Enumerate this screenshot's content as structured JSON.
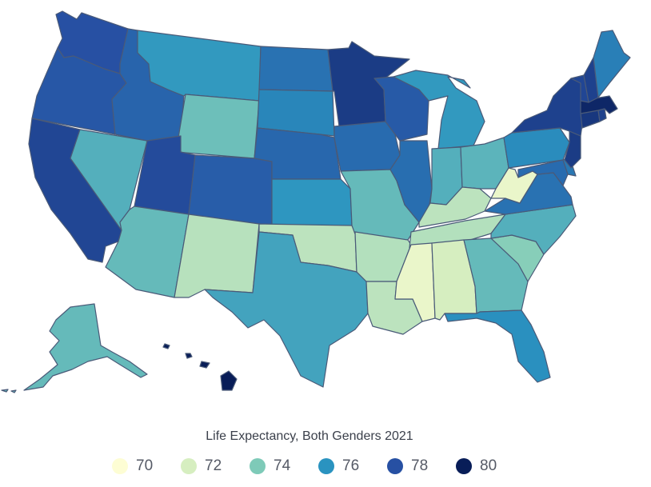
{
  "chart_data": {
    "type": "choropleth",
    "title": "Life Expectancy, Both Genders 2021",
    "legend": {
      "placement": "bottom-center",
      "items": [
        {
          "label": "70",
          "value": 70,
          "color": "#fdfdd4"
        },
        {
          "label": "72",
          "value": 72,
          "color": "#d6eec0"
        },
        {
          "label": "74",
          "value": 74,
          "color": "#7ecab8"
        },
        {
          "label": "76",
          "value": 76,
          "color": "#2a93c0"
        },
        {
          "label": "78",
          "value": 78,
          "color": "#2750a3"
        },
        {
          "label": "80",
          "value": 80,
          "color": "#081d58"
        }
      ]
    },
    "regions": [
      {
        "id": "WA",
        "value": 78.0
      },
      {
        "id": "OR",
        "value": 77.8
      },
      {
        "id": "CA",
        "value": 78.4
      },
      {
        "id": "NV",
        "value": 75.0
      },
      {
        "id": "ID",
        "value": 77.4
      },
      {
        "id": "MT",
        "value": 75.8
      },
      {
        "id": "WY",
        "value": 74.4
      },
      {
        "id": "UT",
        "value": 78.2
      },
      {
        "id": "AZ",
        "value": 74.6
      },
      {
        "id": "CO",
        "value": 77.6
      },
      {
        "id": "NM",
        "value": 72.7
      },
      {
        "id": "ND",
        "value": 77.0
      },
      {
        "id": "SD",
        "value": 76.4
      },
      {
        "id": "NE",
        "value": 77.3
      },
      {
        "id": "KS",
        "value": 75.9
      },
      {
        "id": "OK",
        "value": 72.6
      },
      {
        "id": "TX",
        "value": 75.4
      },
      {
        "id": "MN",
        "value": 78.8
      },
      {
        "id": "IA",
        "value": 77.2
      },
      {
        "id": "MO",
        "value": 74.6
      },
      {
        "id": "AR",
        "value": 72.8
      },
      {
        "id": "LA",
        "value": 72.6
      },
      {
        "id": "WI",
        "value": 77.7
      },
      {
        "id": "IL",
        "value": 77.1
      },
      {
        "id": "MI",
        "value": 75.8
      },
      {
        "id": "IN",
        "value": 75.0
      },
      {
        "id": "OH",
        "value": 74.8
      },
      {
        "id": "KY",
        "value": 72.6
      },
      {
        "id": "TN",
        "value": 72.8
      },
      {
        "id": "MS",
        "value": 71.0
      },
      {
        "id": "AL",
        "value": 72.0
      },
      {
        "id": "GA",
        "value": 74.6
      },
      {
        "id": "FL",
        "value": 76.1
      },
      {
        "id": "SC",
        "value": 73.8
      },
      {
        "id": "NC",
        "value": 75.0
      },
      {
        "id": "VA",
        "value": 77.0
      },
      {
        "id": "WV",
        "value": 71.0
      },
      {
        "id": "PA",
        "value": 76.2
      },
      {
        "id": "NY",
        "value": 78.6
      },
      {
        "id": "ME",
        "value": 76.6
      },
      {
        "id": "VT",
        "value": 78.4
      },
      {
        "id": "NH",
        "value": 78.6
      },
      {
        "id": "MA",
        "value": 79.6
      },
      {
        "id": "CT",
        "value": 79.0
      },
      {
        "id": "RI",
        "value": 78.6
      },
      {
        "id": "NJ",
        "value": 78.8
      },
      {
        "id": "DE",
        "value": 76.8
      },
      {
        "id": "MD",
        "value": 77.2
      },
      {
        "id": "AK",
        "value": 74.6
      },
      {
        "id": "HI",
        "value": 80.6
      }
    ]
  }
}
